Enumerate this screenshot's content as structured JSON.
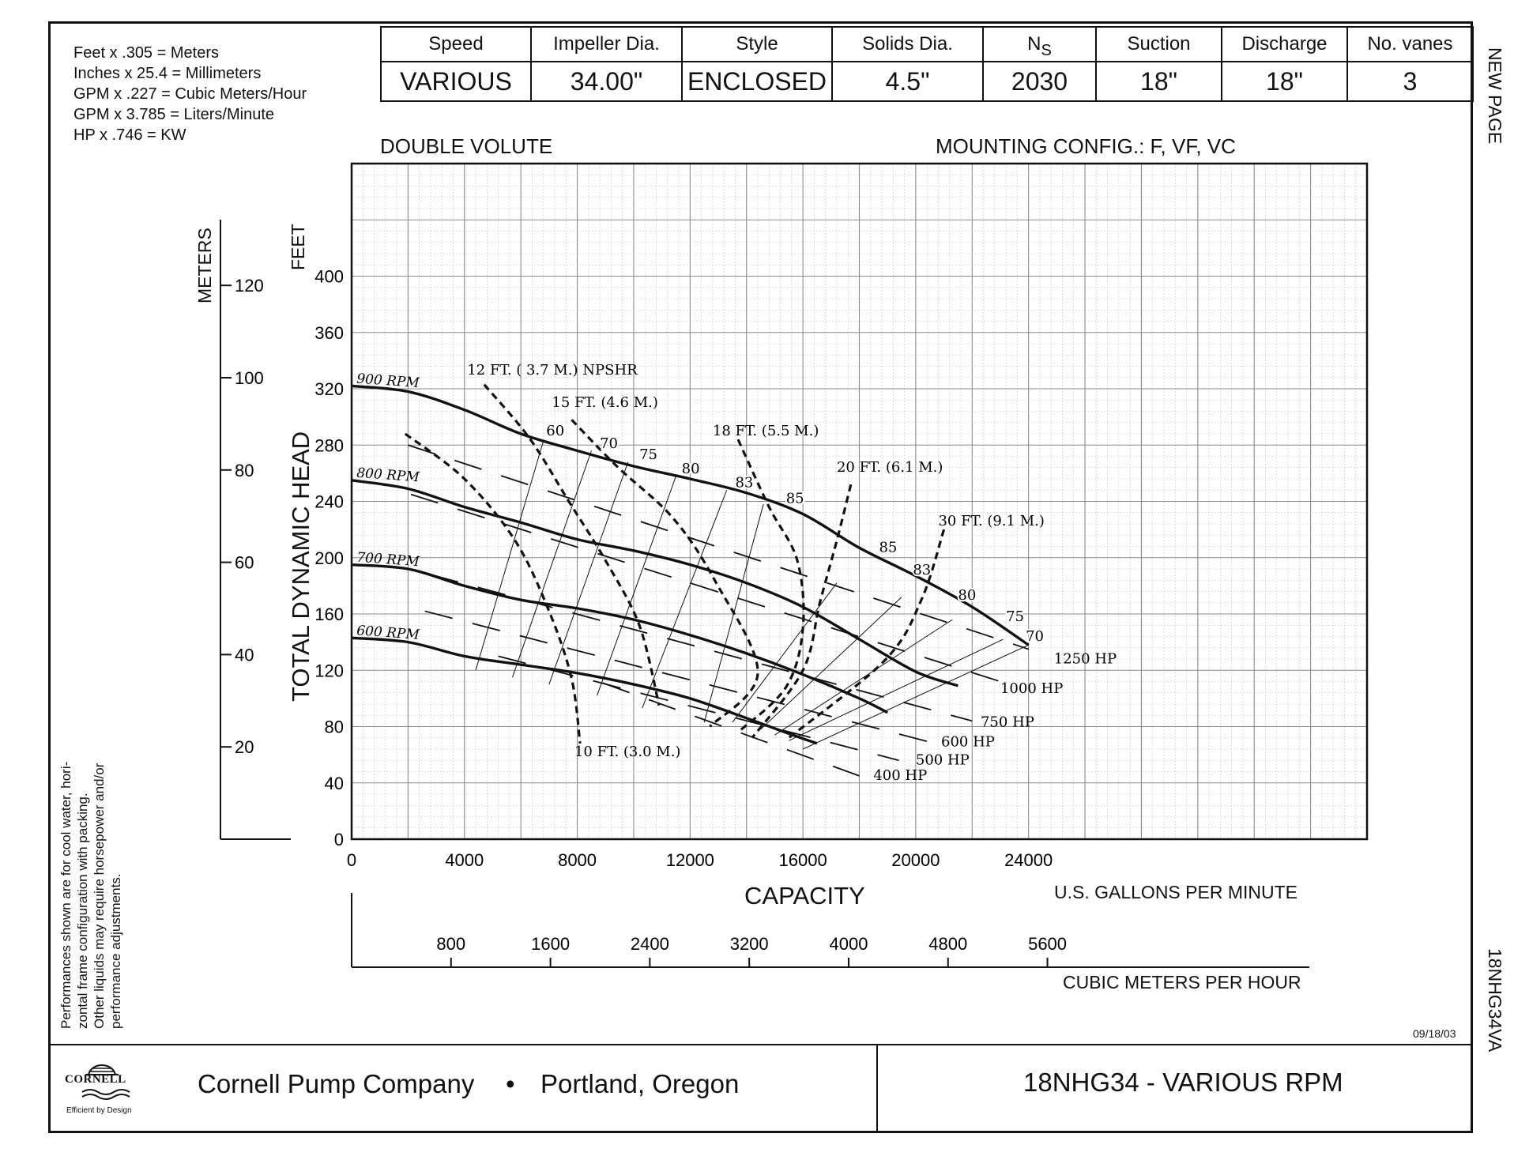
{
  "conversions": [
    "Feet x .305 = Meters",
    "Inches x 25.4 = Millimeters",
    "GPM x .227 = Cubic Meters/Hour",
    "GPM x 3.785 = Liters/Minute",
    "HP x .746 = KW"
  ],
  "spec_table": {
    "headers": [
      "Speed",
      "Impeller Dia.",
      "Style",
      "Solids Dia.",
      "N",
      "Suction",
      "Discharge",
      "No. vanes"
    ],
    "ns_subscript": "S",
    "values": [
      "VARIOUS",
      "34.00\"",
      "ENCLOSED",
      "4.5\"",
      "2030",
      "18\"",
      "18\"",
      "3"
    ]
  },
  "side_labels": {
    "top_right": "NEW PAGE",
    "bottom_right": "18NHG34VA"
  },
  "subtitle_left": "DOUBLE VOLUTE",
  "subtitle_right": "MOUNTING CONFIG.:  F,  VF,  VC",
  "notes": [
    "Performances shown are for cool water, hori-",
    "zontal frame configuration with packing.",
    "Other liquids may require horsepower and/or",
    "performance adjustments."
  ],
  "date": "09/18/03",
  "footer": {
    "logo_name": "CORNELL",
    "logo_tagline": "Efficient by Design",
    "company": "Cornell Pump Company",
    "bullet": "•",
    "location": "Portland, Oregon",
    "model": "18NHG34 - VARIOUS RPM"
  },
  "chart_data": {
    "type": "line",
    "xlabel": "CAPACITY",
    "xunit_label": "U.S. GALLONS PER MINUTE",
    "ylabel": "TOTAL DYNAMIC HEAD",
    "yunit_label": "FEET",
    "secondary_y_label": "METERS",
    "secondary_x_label": "CUBIC METERS PER HOUR",
    "xlim": [
      0,
      36000
    ],
    "ylim": [
      0,
      480
    ],
    "x_ticks": [
      0,
      4000,
      8000,
      12000,
      16000,
      20000,
      24000
    ],
    "y_ticks": [
      0,
      40,
      80,
      120,
      160,
      200,
      240,
      280,
      320,
      360,
      400
    ],
    "meters_ticks": [
      20,
      40,
      60,
      80,
      100,
      120
    ],
    "cmh_ticks": [
      800,
      1600,
      2400,
      3200,
      4000,
      4800,
      5600
    ],
    "grid": true,
    "rpm_curves": [
      {
        "label": "900 RPM",
        "points": [
          [
            0,
            322
          ],
          [
            2000,
            318
          ],
          [
            4000,
            305
          ],
          [
            6000,
            288
          ],
          [
            8000,
            276
          ],
          [
            10000,
            265
          ],
          [
            12000,
            256
          ],
          [
            14000,
            246
          ],
          [
            16000,
            231
          ],
          [
            18000,
            207
          ],
          [
            20000,
            187
          ],
          [
            22000,
            165
          ],
          [
            24000,
            138
          ]
        ]
      },
      {
        "label": "800 RPM",
        "points": [
          [
            0,
            255
          ],
          [
            2000,
            249
          ],
          [
            4000,
            236
          ],
          [
            6000,
            225
          ],
          [
            8000,
            213
          ],
          [
            10000,
            205
          ],
          [
            12000,
            195
          ],
          [
            14000,
            182
          ],
          [
            16000,
            165
          ],
          [
            18000,
            142
          ],
          [
            20000,
            119
          ],
          [
            21500,
            109
          ]
        ]
      },
      {
        "label": "700 RPM",
        "points": [
          [
            0,
            195
          ],
          [
            2000,
            192
          ],
          [
            4000,
            180
          ],
          [
            6000,
            170
          ],
          [
            8000,
            164
          ],
          [
            10000,
            156
          ],
          [
            12000,
            145
          ],
          [
            14000,
            132
          ],
          [
            16000,
            117
          ],
          [
            18000,
            100
          ],
          [
            19000,
            90
          ]
        ]
      },
      {
        "label": "600 RPM",
        "points": [
          [
            0,
            143
          ],
          [
            2000,
            140
          ],
          [
            4000,
            130
          ],
          [
            6000,
            124
          ],
          [
            8000,
            118
          ],
          [
            10000,
            110
          ],
          [
            12000,
            100
          ],
          [
            14000,
            86
          ],
          [
            15500,
            75
          ],
          [
            16500,
            68
          ]
        ]
      }
    ],
    "efficiency_lines": [
      {
        "label": "60",
        "points": [
          [
            4400,
            120
          ],
          [
            6800,
            283
          ]
        ]
      },
      {
        "label": "70",
        "points": [
          [
            5700,
            115
          ],
          [
            8500,
            276
          ]
        ]
      },
      {
        "label": "75",
        "points": [
          [
            7000,
            110
          ],
          [
            9800,
            268
          ]
        ]
      },
      {
        "label": "80",
        "points": [
          [
            8700,
            102
          ],
          [
            11500,
            258
          ]
        ]
      },
      {
        "label": "83",
        "points": [
          [
            10300,
            93
          ],
          [
            13300,
            248
          ]
        ]
      },
      {
        "label": "85",
        "points": [
          [
            12500,
            83
          ],
          [
            14600,
            238
          ]
        ]
      },
      {
        "label": "85",
        "points": [
          [
            13500,
            83
          ],
          [
            17200,
            182
          ]
        ]
      },
      {
        "label": "83",
        "points": [
          [
            14500,
            78
          ],
          [
            19500,
            172
          ]
        ]
      },
      {
        "label": "80",
        "points": [
          [
            15000,
            74
          ],
          [
            21300,
            156
          ]
        ]
      },
      {
        "label": "75",
        "points": [
          [
            15500,
            70
          ],
          [
            23100,
            142
          ]
        ]
      },
      {
        "label": "70",
        "points": [
          [
            16000,
            64
          ],
          [
            24000,
            138
          ]
        ]
      }
    ],
    "efficiency_labels": [
      {
        "text": "60",
        "at": [
          6900,
          287
        ]
      },
      {
        "text": "70",
        "at": [
          8800,
          278
        ]
      },
      {
        "text": "75",
        "at": [
          10200,
          270
        ]
      },
      {
        "text": "80",
        "at": [
          11700,
          260
        ]
      },
      {
        "text": "83",
        "at": [
          13600,
          250
        ]
      },
      {
        "text": "85",
        "at": [
          15400,
          239
        ]
      },
      {
        "text": "85",
        "at": [
          18700,
          204
        ]
      },
      {
        "text": "83",
        "at": [
          19900,
          188
        ]
      },
      {
        "text": "80",
        "at": [
          21500,
          170
        ]
      },
      {
        "text": "75",
        "at": [
          23200,
          155
        ]
      },
      {
        "text": "70",
        "at": [
          23900,
          141
        ]
      }
    ],
    "npshr_curves": [
      {
        "label": "10 FT. (3.0 M.)",
        "label_at": [
          7900,
          59
        ],
        "points": [
          [
            1900,
            288
          ],
          [
            4000,
            256
          ],
          [
            5800,
            212
          ],
          [
            7000,
            162
          ],
          [
            7800,
            114
          ],
          [
            8100,
            68
          ]
        ]
      },
      {
        "label": "12 FT. ( 3.7 M.) NPSHR",
        "label_at": [
          4100,
          330
        ],
        "points": [
          [
            4700,
            323
          ],
          [
            6300,
            285
          ],
          [
            7700,
            240
          ],
          [
            9000,
            198
          ],
          [
            10200,
            152
          ],
          [
            10900,
            95
          ]
        ]
      },
      {
        "label": "15 FT. (4.6 M.)",
        "label_at": [
          7100,
          307
        ],
        "points": [
          [
            7800,
            298
          ],
          [
            9400,
            265
          ],
          [
            11400,
            228
          ],
          [
            12900,
            183
          ],
          [
            14400,
            118
          ],
          [
            12700,
            80
          ]
        ]
      },
      {
        "label": "18 FT. (5.5 M.)",
        "label_at": [
          12800,
          287
        ],
        "points": [
          [
            13700,
            284
          ],
          [
            14800,
            236
          ],
          [
            15800,
            198
          ],
          [
            16000,
            150
          ],
          [
            15400,
            108
          ],
          [
            13700,
            76
          ]
        ]
      },
      {
        "label": "20 FT. (6.1 M.)",
        "label_at": [
          17200,
          261
        ],
        "points": [
          [
            17700,
            252
          ],
          [
            17200,
            212
          ],
          [
            16600,
            168
          ],
          [
            16000,
            120
          ],
          [
            14200,
            72
          ]
        ]
      },
      {
        "label": "30 FT. (9.1 M.)",
        "label_at": [
          20800,
          223
        ],
        "points": [
          [
            21000,
            220
          ],
          [
            20200,
            170
          ],
          [
            18900,
            127
          ],
          [
            15500,
            72
          ]
        ]
      }
    ],
    "hp_lines": [
      {
        "label": "1250 HP",
        "label_at": [
          24900,
          125
        ],
        "points": [
          [
            2000,
            280
          ],
          [
            24000,
            135
          ]
        ]
      },
      {
        "label": "1000 HP",
        "label_at": [
          23000,
          104
        ],
        "points": [
          [
            2100,
            245
          ],
          [
            23000,
            112
          ]
        ]
      },
      {
        "label": "750 HP",
        "label_at": [
          22300,
          80
        ],
        "points": [
          [
            2800,
            188
          ],
          [
            22000,
            84
          ]
        ]
      },
      {
        "label": "600 HP",
        "label_at": [
          20900,
          66
        ],
        "points": [
          [
            2600,
            162
          ],
          [
            20500,
            69
          ]
        ]
      },
      {
        "label": "500 HP",
        "label_at": [
          20000,
          53
        ],
        "points": [
          [
            5200,
            130
          ],
          [
            19400,
            56
          ]
        ]
      },
      {
        "label": "400 HP",
        "label_at": [
          18500,
          42
        ],
        "points": [
          [
            8900,
            111
          ],
          [
            18000,
            45
          ]
        ]
      }
    ]
  }
}
